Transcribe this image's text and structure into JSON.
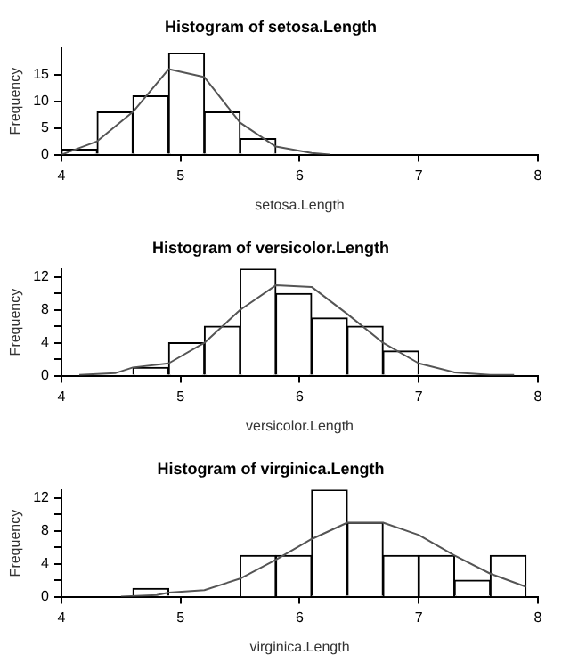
{
  "chart_data": [
    {
      "type": "histogram",
      "title": "Histogram of setosa.Length",
      "xlabel": "setosa.Length",
      "ylabel": "Frequency",
      "xlim": [
        4,
        8
      ],
      "xticks": [
        4,
        5,
        6,
        7,
        8
      ],
      "ylim": [
        0,
        20
      ],
      "yticks": [
        0,
        5,
        10,
        15
      ],
      "grid": false,
      "legend": false,
      "series": [
        {
          "type": "histogram",
          "color": "#ffffff",
          "bins": [
            4.0,
            4.3,
            4.6,
            4.9,
            5.2,
            5.5,
            5.8,
            6.1,
            6.4,
            6.7,
            7.0,
            7.3,
            7.6,
            7.9
          ],
          "values": [
            1,
            8,
            11,
            19,
            8,
            3,
            0,
            0,
            0,
            0,
            0,
            0,
            0
          ]
        },
        {
          "type": "line",
          "color": "#555555",
          "x": [
            4.0,
            4.3,
            4.6,
            4.9,
            5.2,
            5.5,
            5.8,
            6.1,
            6.25
          ],
          "values": [
            0,
            2.5,
            8,
            16,
            14.5,
            6,
            1.5,
            0.3,
            0
          ]
        }
      ]
    },
    {
      "type": "histogram",
      "title": "Histogram of versicolor.Length",
      "xlabel": "versicolor.Length",
      "ylabel": "Frequency",
      "xlim": [
        4,
        8
      ],
      "xticks": [
        4,
        5,
        6,
        7,
        8
      ],
      "ylim": [
        0,
        13
      ],
      "yticks": [
        0,
        {
          "value": 2,
          "label": null
        },
        4,
        {
          "value": 6,
          "label": null
        },
        8,
        {
          "value": 10,
          "label": null
        },
        12
      ],
      "grid": false,
      "legend": false,
      "series": [
        {
          "type": "histogram",
          "color": "#ffffff",
          "bins": [
            4.0,
            4.3,
            4.6,
            4.9,
            5.2,
            5.5,
            5.8,
            6.1,
            6.4,
            6.7,
            7.0,
            7.3,
            7.6,
            7.9
          ],
          "values": [
            0,
            0,
            1,
            4,
            6,
            13,
            10,
            7,
            6,
            3,
            0,
            0,
            0
          ]
        },
        {
          "type": "line",
          "color": "#555555",
          "x": [
            4.15,
            4.45,
            4.6,
            4.9,
            5.2,
            5.5,
            5.8,
            6.1,
            6.4,
            6.7,
            7.0,
            7.3,
            7.6,
            7.8
          ],
          "values": [
            0.1,
            0.3,
            1,
            1.5,
            4,
            8,
            11,
            10.8,
            7.5,
            4,
            1.5,
            0.4,
            0.1,
            0.1
          ]
        }
      ]
    },
    {
      "type": "histogram",
      "title": "Histogram of virginica.Length",
      "xlabel": "virginica.Length",
      "ylabel": "Frequency",
      "xlim": [
        4,
        8
      ],
      "xticks": [
        4,
        5,
        6,
        7,
        8
      ],
      "ylim": [
        0,
        13
      ],
      "yticks": [
        0,
        {
          "value": 2,
          "label": null
        },
        4,
        {
          "value": 6,
          "label": null
        },
        8,
        {
          "value": 10,
          "label": null
        },
        12
      ],
      "grid": false,
      "legend": false,
      "series": [
        {
          "type": "histogram",
          "color": "#ffffff",
          "bins": [
            4.0,
            4.3,
            4.6,
            4.9,
            5.2,
            5.5,
            5.8,
            6.1,
            6.4,
            6.7,
            7.0,
            7.3,
            7.6,
            7.9
          ],
          "values": [
            0,
            0,
            1,
            0,
            0,
            5,
            5,
            13,
            9,
            5,
            5,
            2,
            5
          ]
        },
        {
          "type": "line",
          "color": "#555555",
          "x": [
            4.5,
            4.8,
            4.9,
            5.2,
            5.5,
            5.8,
            6.1,
            6.4,
            6.7,
            7.0,
            7.3,
            7.6,
            7.9
          ],
          "values": [
            0,
            0.2,
            0.5,
            0.8,
            2.2,
            4.5,
            7,
            9,
            9,
            7.5,
            5,
            2.8,
            1.2
          ]
        }
      ]
    }
  ]
}
